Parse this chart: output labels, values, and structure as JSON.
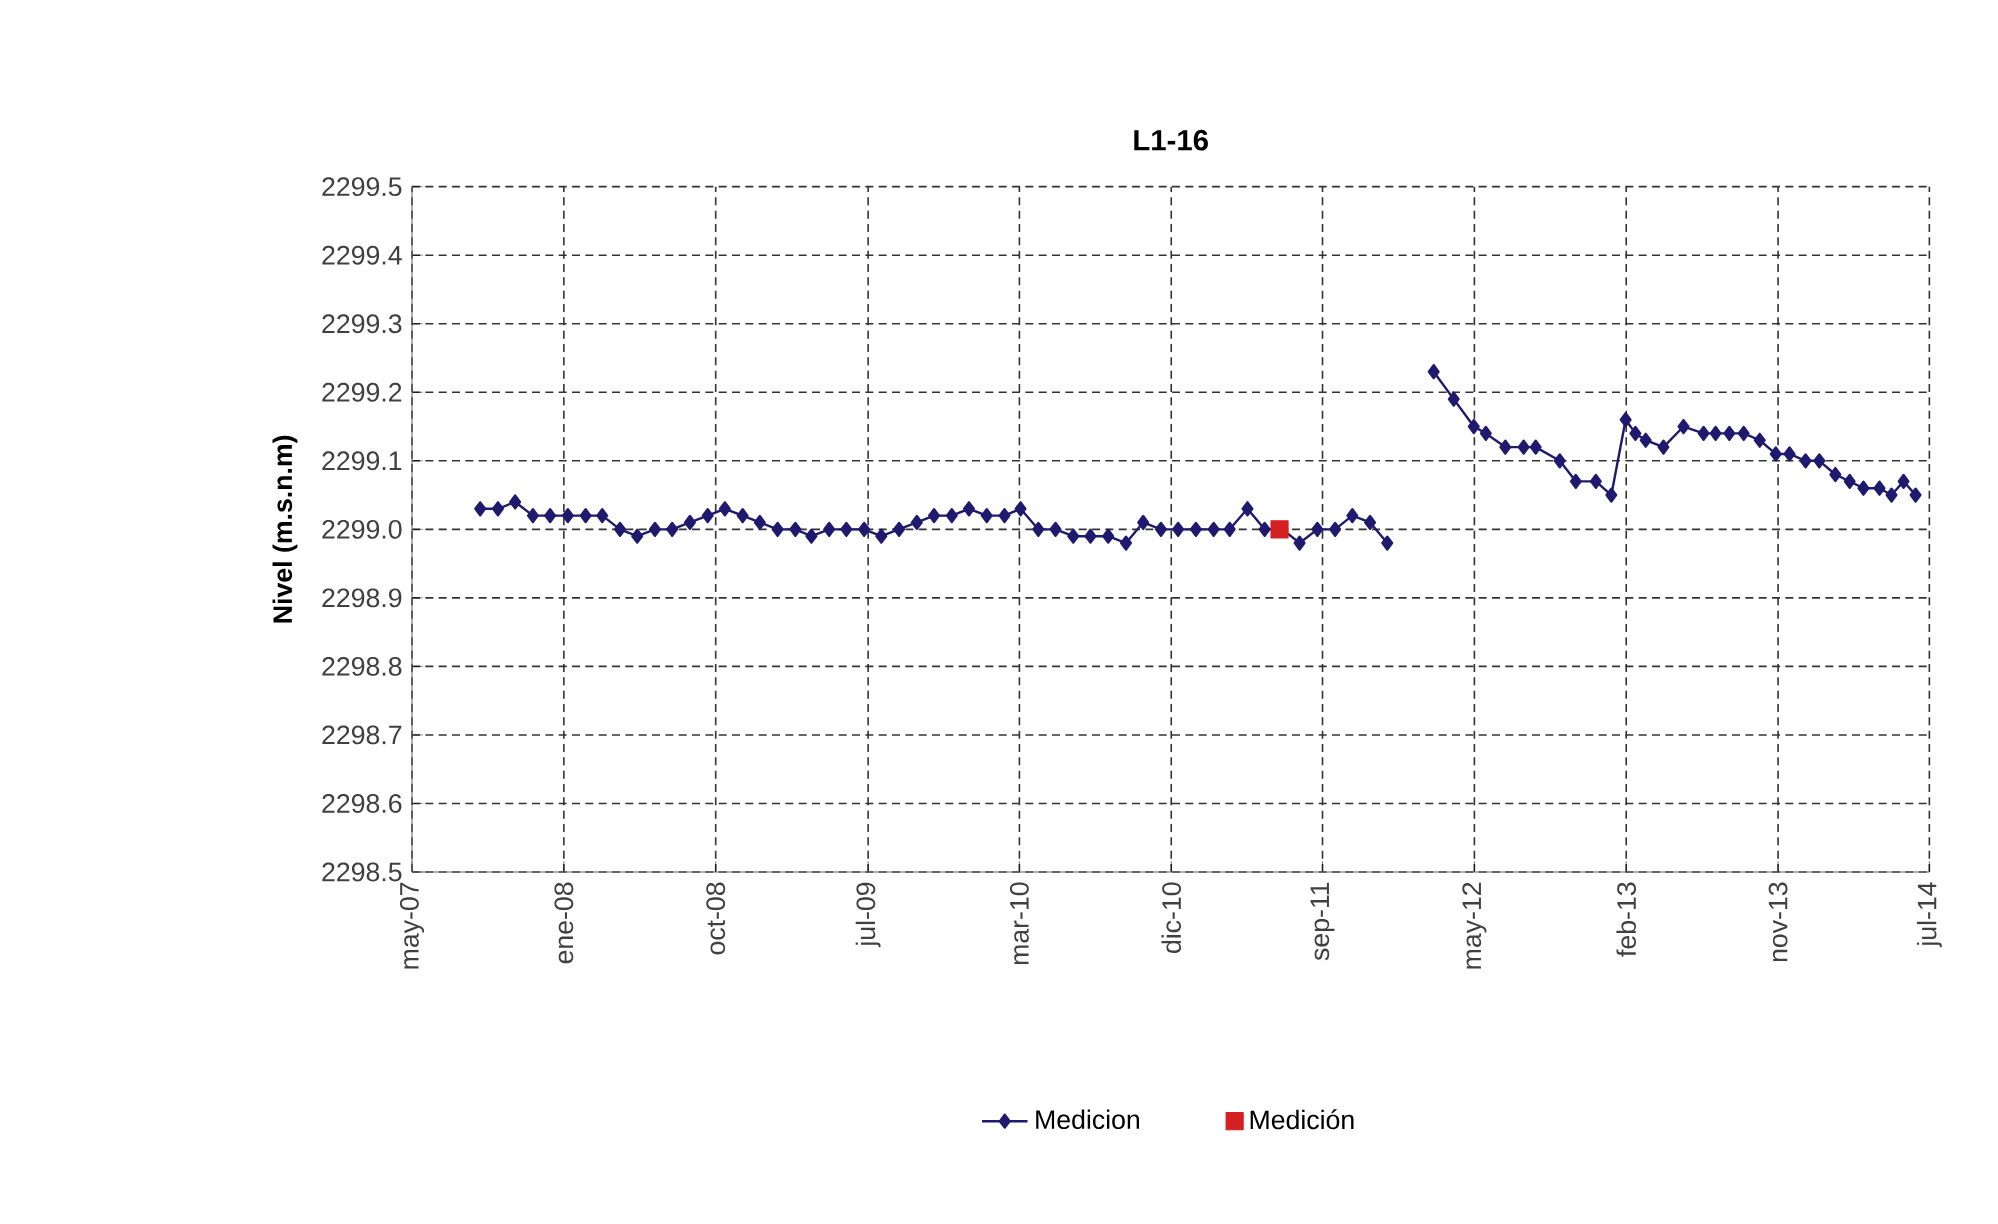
{
  "chart_data": {
    "type": "line",
    "title": "L1-16",
    "ylabel": "Nivel (m.s.n.m)",
    "xlim": [
      "2007-05-01",
      "2014-07-31"
    ],
    "xticks": [
      {
        "value": "2007-05-01",
        "label": "may-07"
      },
      {
        "value": "2008-01-21",
        "label": "ene-08"
      },
      {
        "value": "2008-10-12",
        "label": "oct-08"
      },
      {
        "value": "2009-07-05",
        "label": "jul-09"
      },
      {
        "value": "2010-03-26",
        "label": "mar-10"
      },
      {
        "value": "2010-12-16",
        "label": "dic-10"
      },
      {
        "value": "2011-09-06",
        "label": "sep-11"
      },
      {
        "value": "2012-05-28",
        "label": "may-12"
      },
      {
        "value": "2013-02-17",
        "label": "feb-13"
      },
      {
        "value": "2013-11-09",
        "label": "nov-13"
      },
      {
        "value": "2014-07-31",
        "label": "jul-14"
      }
    ],
    "ylim": [
      2298.5,
      2299.5
    ],
    "yticks": [
      2298.5,
      2298.6,
      2298.7,
      2298.8,
      2298.9,
      {
        "value": 2299,
        "label": "2299.0"
      },
      2299.1,
      2299.2,
      2299.3,
      2299.4,
      2299.5
    ],
    "grid": true,
    "legend": "bottom",
    "series": [
      {
        "name": "Medicion",
        "marker": "diamond",
        "color": "#1f1a6e",
        "x": [
          "2007-08-28",
          "2007-09-28",
          "2007-10-28",
          "2007-11-28",
          "2007-12-28",
          "2008-01-28",
          "2008-02-28",
          "2008-03-28",
          "2008-04-28",
          "2008-05-28",
          "2008-06-28",
          "2008-07-28",
          "2008-08-28",
          "2008-09-28",
          "2008-10-28",
          "2008-11-28",
          "2008-12-28",
          "2009-01-28",
          "2009-02-28",
          "2009-03-28",
          "2009-04-28",
          "2009-05-28",
          "2009-06-28",
          "2009-07-28",
          "2009-08-28",
          "2009-09-28",
          "2009-10-28",
          "2009-11-28",
          "2009-12-28",
          "2010-01-28",
          "2010-02-28",
          "2010-03-28",
          "2010-04-28",
          "2010-05-28",
          "2010-06-28",
          "2010-07-28",
          "2010-08-28",
          "2010-09-28",
          "2010-10-28",
          "2010-11-28",
          "2010-12-28",
          "2011-01-28",
          "2011-02-28",
          "2011-03-28",
          "2011-04-28",
          "2011-05-28",
          "2011-06-28",
          "2011-07-28",
          "2011-08-28",
          "2011-09-28",
          "2011-10-28",
          "2011-11-28",
          "2011-12-28",
          "2012-02-01",
          "2012-03-18",
          "2012-04-22",
          "2012-05-27",
          "2012-06-17",
          "2012-07-21",
          "2012-08-22",
          "2012-09-12",
          "2012-10-24",
          "2012-11-21",
          "2012-12-26",
          "2013-01-22",
          "2013-02-16",
          "2013-03-05",
          "2013-03-23",
          "2013-04-23",
          "2013-05-28",
          "2013-07-02",
          "2013-07-23",
          "2013-08-16",
          "2013-09-10",
          "2013-10-08",
          "2013-11-05",
          "2013-11-29",
          "2013-12-27",
          "2014-01-20",
          "2014-02-17",
          "2014-03-14",
          "2014-04-07",
          "2014-05-05",
          "2014-05-26",
          "2014-06-16",
          "2014-07-07"
        ],
        "values": [
          2299.03,
          2299.03,
          2299.04,
          2299.02,
          2299.02,
          2299.02,
          2299.02,
          2299.02,
          2299.0,
          2298.99,
          2299.0,
          2299.0,
          2299.01,
          2299.02,
          2299.03,
          2299.02,
          2299.01,
          2299.0,
          2299.0,
          2298.99,
          2299.0,
          2299.0,
          2299.0,
          2298.99,
          2299.0,
          2299.01,
          2299.02,
          2299.02,
          2299.03,
          2299.02,
          2299.02,
          2299.03,
          2299.0,
          2299.0,
          2298.99,
          2298.99,
          2298.99,
          2298.98,
          2299.01,
          2299.0,
          2299.0,
          2299.0,
          2299.0,
          2299.0,
          2299.03,
          2299.0,
          2299.0,
          2298.98,
          2299.0,
          2299.0,
          2299.02,
          2299.01,
          2298.98,
          null,
          2299.23,
          2299.19,
          2299.15,
          2299.14,
          2299.12,
          2299.12,
          2299.12,
          2299.1,
          2299.07,
          2299.07,
          2299.05,
          2299.16,
          2299.14,
          2299.13,
          2299.12,
          2299.15,
          2299.14,
          2299.14,
          2299.14,
          2299.14,
          2299.13,
          2299.11,
          2299.11,
          2299.1,
          2299.1,
          2299.08,
          2299.07,
          2299.06,
          2299.06,
          2299.05,
          2299.07,
          2299.05
        ]
      },
      {
        "name": "Medición",
        "type": "scatter",
        "marker": "square",
        "color": "#d42020",
        "x": [
          "2011-06-23"
        ],
        "values": [
          2299.0
        ]
      }
    ]
  }
}
